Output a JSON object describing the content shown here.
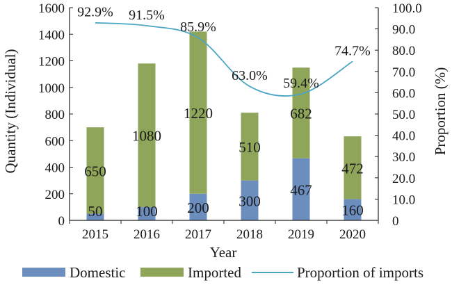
{
  "chart_data": {
    "type": "bar",
    "stacked": true,
    "categories": [
      "2015",
      "2016",
      "2017",
      "2018",
      "2019",
      "2020"
    ],
    "series": [
      {
        "name": "Domestic",
        "axis": "left",
        "color": "#6c8ebf",
        "values": [
          50,
          100,
          200,
          300,
          467,
          160
        ]
      },
      {
        "name": "Imported",
        "axis": "left",
        "color": "#8fa65a",
        "values": [
          650,
          1080,
          1220,
          510,
          682,
          472
        ]
      },
      {
        "name": "Proportion of imports",
        "type": "line",
        "axis": "right",
        "color": "#4aa6c4",
        "values": [
          92.9,
          91.5,
          85.9,
          63.0,
          59.4,
          74.7
        ]
      }
    ],
    "data_labels": {
      "domestic": [
        "50",
        "100",
        "200",
        "300",
        "467",
        "160"
      ],
      "imported": [
        "650",
        "1080",
        "1220",
        "510",
        "682",
        "472"
      ],
      "proportion": [
        "92.9%",
        "91.5%",
        "85.9%",
        "63.0%",
        "59.4%",
        "74.7%"
      ]
    },
    "xlabel": "Year",
    "ylabel": "Quantity (Individual)",
    "y2label": "Proportion (%)",
    "ylim": [
      0,
      1600
    ],
    "y2lim": [
      0,
      100
    ],
    "yticks": [
      "0",
      "200",
      "400",
      "600",
      "800",
      "1000",
      "1200",
      "1400",
      "1600"
    ],
    "y2ticks": [
      "0",
      "10.0",
      "20.0",
      "30.0",
      "40.0",
      "50.0",
      "60.0",
      "70.0",
      "80.0",
      "90.0",
      "100.0"
    ],
    "grid": false,
    "legend_position": "bottom"
  }
}
